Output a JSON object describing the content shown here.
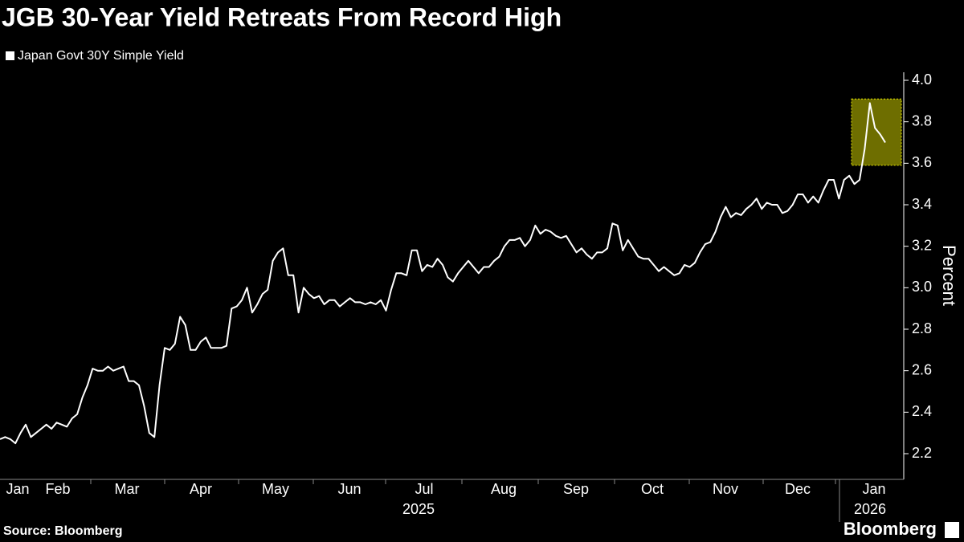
{
  "chart_data": {
    "type": "line",
    "title": "JGB 30-Year Yield Retreats From Record High",
    "y_axis_label": "Percent",
    "source": "Source: Bloomberg",
    "brand": "Bloomberg",
    "x_labels": [
      "Jan",
      "Feb",
      "Mar",
      "Apr",
      "May",
      "Jun",
      "Jul",
      "Aug",
      "Sep",
      "Oct",
      "Nov",
      "Dec",
      "Jan"
    ],
    "year_labels": [
      "2025",
      "2026"
    ],
    "series": [
      {
        "name": "Japan Govt 30Y Simple Yield",
        "color": "#ffffff",
        "values": [
          2.27,
          2.28,
          2.27,
          2.25,
          2.3,
          2.34,
          2.28,
          2.3,
          2.32,
          2.34,
          2.32,
          2.35,
          2.34,
          2.33,
          2.37,
          2.39,
          2.47,
          2.53,
          2.61,
          2.6,
          2.6,
          2.62,
          2.6,
          2.61,
          2.62,
          2.55,
          2.55,
          2.53,
          2.43,
          2.3,
          2.28,
          2.53,
          2.71,
          2.7,
          2.73,
          2.86,
          2.82,
          2.7,
          2.7,
          2.74,
          2.76,
          2.71,
          2.71,
          2.71,
          2.72,
          2.9,
          2.91,
          2.94,
          3.0,
          2.88,
          2.92,
          2.97,
          2.99,
          3.13,
          3.17,
          3.19,
          3.06,
          3.06,
          2.88,
          3.0,
          2.97,
          2.95,
          2.96,
          2.92,
          2.94,
          2.94,
          2.91,
          2.93,
          2.95,
          2.93,
          2.93,
          2.92,
          2.93,
          2.92,
          2.94,
          2.89,
          2.99,
          3.07,
          3.07,
          3.06,
          3.18,
          3.18,
          3.08,
          3.11,
          3.1,
          3.14,
          3.11,
          3.05,
          3.03,
          3.07,
          3.1,
          3.13,
          3.1,
          3.07,
          3.1,
          3.1,
          3.13,
          3.15,
          3.2,
          3.23,
          3.23,
          3.24,
          3.2,
          3.23,
          3.3,
          3.26,
          3.28,
          3.27,
          3.25,
          3.24,
          3.25,
          3.21,
          3.17,
          3.19,
          3.16,
          3.14,
          3.17,
          3.17,
          3.19,
          3.31,
          3.3,
          3.18,
          3.23,
          3.19,
          3.15,
          3.14,
          3.14,
          3.11,
          3.08,
          3.1,
          3.08,
          3.06,
          3.07,
          3.11,
          3.1,
          3.12,
          3.17,
          3.21,
          3.22,
          3.27,
          3.34,
          3.39,
          3.34,
          3.36,
          3.35,
          3.38,
          3.4,
          3.43,
          3.38,
          3.41,
          3.4,
          3.4,
          3.36,
          3.37,
          3.4,
          3.45,
          3.45,
          3.41,
          3.44,
          3.41,
          3.47,
          3.52,
          3.52,
          3.43,
          3.52,
          3.54,
          3.5,
          3.52,
          3.67,
          3.89,
          3.77,
          3.74,
          3.7
        ]
      }
    ],
    "highlight_range": [
      3.59,
      3.91
    ],
    "ylim": [
      2.1,
      4.05
    ],
    "yticks": [
      2.2,
      2.4,
      2.6,
      2.8,
      {
        "value": 3.0,
        "label": "3.0"
      },
      3.2,
      3.4,
      3.6,
      3.8,
      {
        "value": 4.0,
        "label": "4.0"
      }
    ]
  }
}
